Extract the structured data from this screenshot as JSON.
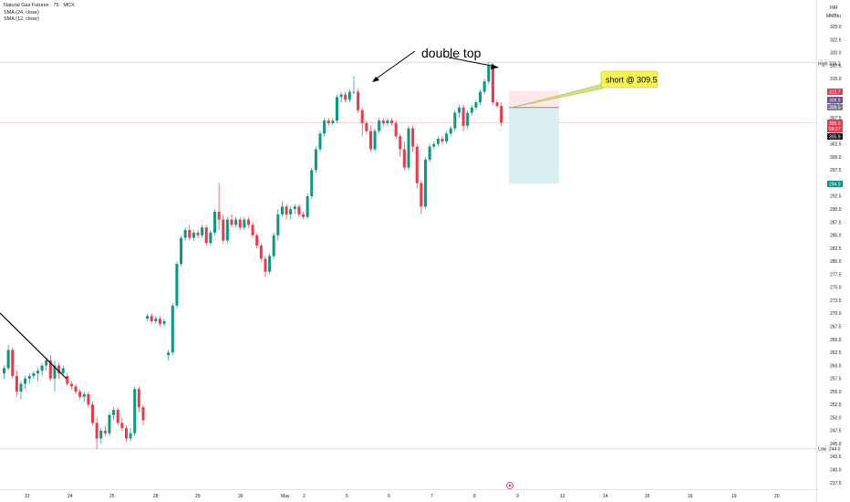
{
  "header": {
    "symbol_line": "Natural Gas Futures · 75 · MCX",
    "indicator_1": "SMA (24, close)",
    "indicator_2": "SMA (12, close)"
  },
  "currency": {
    "code": "INR",
    "unit": "MMBtu"
  },
  "annotations": {
    "double_top": "double top",
    "short_callout": "short @ 309.5"
  },
  "price_tags": {
    "high_label": "High",
    "high_value": "318.2",
    "low_label": "Low",
    "low_value": "244.0",
    "stop_value": "312.7",
    "tag_a": "309.9",
    "tag_b": "309.5",
    "current_price": "306.6",
    "countdown": "59:27",
    "tag_c": "305.9",
    "target_value": "294.9"
  },
  "colors": {
    "up": "#089981",
    "down": "#f23645",
    "high_low_line": "#b2b5be",
    "stop_zone": "#fce8ea",
    "target_zone": "#daf0f0",
    "entry_line": "#787b86",
    "callout_bg": "#f5f552",
    "target_tag": "#089981",
    "stop_tag": "#f23645",
    "dark_tag": "#131722",
    "purple_tag": "#6a4c93",
    "gray_tag": "#787b86"
  },
  "chart_data": {
    "type": "candlestick",
    "y_ticks": [
      "325.0",
      "322.5",
      "320.0",
      "317.5",
      "315.0",
      "312.5",
      "310.0",
      "307.5",
      "305.0",
      "302.5",
      "300.0",
      "297.5",
      "295.0",
      "292.5",
      "290.0",
      "287.5",
      "285.0",
      "282.5",
      "280.0",
      "277.5",
      "275.0",
      "272.5",
      "270.0",
      "267.5",
      "265.0",
      "262.5",
      "260.0",
      "257.5",
      "255.0",
      "252.5",
      "250.0",
      "247.5",
      "245.0",
      "242.5",
      "240.0",
      "237.5"
    ],
    "x_ticks": [
      "23",
      "24",
      "25",
      "28",
      "29",
      "30",
      "May",
      "2",
      "5",
      "6",
      "7",
      "8",
      "9",
      "12",
      "14",
      "15",
      "16",
      "19",
      "20"
    ],
    "ylim": [
      236.5,
      328.0
    ],
    "high": 318.2,
    "low": 244.0,
    "trade": {
      "entry": 309.5,
      "stop": 312.7,
      "target": 294.9
    },
    "candles": [
      [
        258.5,
        260.0,
        257.5,
        259.5
      ],
      [
        259.5,
        264.0,
        259.0,
        263.0
      ],
      [
        263.0,
        263.5,
        257.5,
        258.0
      ],
      [
        258.0,
        259.0,
        254.0,
        255.0
      ],
      [
        255.0,
        257.0,
        253.5,
        256.5
      ],
      [
        256.5,
        258.0,
        255.5,
        257.5
      ],
      [
        257.5,
        258.5,
        256.5,
        258.0
      ],
      [
        258.0,
        259.0,
        257.5,
        258.5
      ],
      [
        258.5,
        259.5,
        257.0,
        259.0
      ],
      [
        259.0,
        260.5,
        258.0,
        260.0
      ],
      [
        260.0,
        261.5,
        259.0,
        261.0
      ],
      [
        261.0,
        262.0,
        257.0,
        257.5
      ],
      [
        257.5,
        261.0,
        255.0,
        260.0
      ],
      [
        260.0,
        260.5,
        257.5,
        258.5
      ],
      [
        258.5,
        260.0,
        258.0,
        259.5
      ],
      [
        258.0,
        258.5,
        256.0,
        256.5
      ],
      [
        256.5,
        257.0,
        255.5,
        256.0
      ],
      [
        256.0,
        256.5,
        254.5,
        255.0
      ],
      [
        255.0,
        255.5,
        253.5,
        254.0
      ],
      [
        254.0,
        255.0,
        253.0,
        254.5
      ],
      [
        254.5,
        255.0,
        252.0,
        252.5
      ],
      [
        252.5,
        253.0,
        248.5,
        249.0
      ],
      [
        249.0,
        250.0,
        244.0,
        246.0
      ],
      [
        246.0,
        248.0,
        245.0,
        247.5
      ],
      [
        247.5,
        248.5,
        246.5,
        247.0
      ],
      [
        247.0,
        251.0,
        246.5,
        250.5
      ],
      [
        250.5,
        252.0,
        249.5,
        251.5
      ],
      [
        251.5,
        252.0,
        248.5,
        249.0
      ],
      [
        249.0,
        250.0,
        247.5,
        248.0
      ],
      [
        248.0,
        248.5,
        245.5,
        246.0
      ],
      [
        246.0,
        248.0,
        245.5,
        247.0
      ],
      [
        247.0,
        256.0,
        246.5,
        255.5
      ],
      [
        255.5,
        256.0,
        251.0,
        252.0
      ],
      [
        252.0,
        252.5,
        248.5,
        249.5
      ],
      [
        269.0,
        270.0,
        268.5,
        269.5
      ],
      [
        269.5,
        270.0,
        268.0,
        268.5
      ],
      [
        268.5,
        269.5,
        268.0,
        269.0
      ],
      [
        269.0,
        269.5,
        267.5,
        268.0
      ],
      [
        268.0,
        269.0,
        267.5,
        268.5
      ],
      [
        262.0,
        263.0,
        261.0,
        262.5
      ],
      [
        262.5,
        272.0,
        262.0,
        271.5
      ],
      [
        271.5,
        280.0,
        271.0,
        279.5
      ],
      [
        279.5,
        285.0,
        279.0,
        284.5
      ],
      [
        284.5,
        286.5,
        284.0,
        286.0
      ],
      [
        286.0,
        287.0,
        284.0,
        284.5
      ],
      [
        284.5,
        286.0,
        284.0,
        285.5
      ],
      [
        285.5,
        286.0,
        284.5,
        285.0
      ],
      [
        285.0,
        287.0,
        284.5,
        286.5
      ],
      [
        286.5,
        287.0,
        283.0,
        283.5
      ],
      [
        283.5,
        286.0,
        283.0,
        285.5
      ],
      [
        285.5,
        290.0,
        285.0,
        289.5
      ],
      [
        289.5,
        295.0,
        286.0,
        288.0
      ],
      [
        288.0,
        289.0,
        283.5,
        284.0
      ],
      [
        284.0,
        288.5,
        283.5,
        288.0
      ],
      [
        288.0,
        289.0,
        286.5,
        287.0
      ],
      [
        287.0,
        288.5,
        286.5,
        288.0
      ],
      [
        288.0,
        288.5,
        286.0,
        286.5
      ],
      [
        286.5,
        288.5,
        286.0,
        288.0
      ],
      [
        288.0,
        288.5,
        286.5,
        287.0
      ],
      [
        287.0,
        287.5,
        284.5,
        285.0
      ],
      [
        285.0,
        285.5,
        282.5,
        283.0
      ],
      [
        283.0,
        283.5,
        280.0,
        280.5
      ],
      [
        280.5,
        281.0,
        277.0,
        278.0
      ],
      [
        278.0,
        281.5,
        277.5,
        281.0
      ],
      [
        281.0,
        285.5,
        280.5,
        285.0
      ],
      [
        285.0,
        290.0,
        284.0,
        289.0
      ],
      [
        289.0,
        291.5,
        288.5,
        290.5
      ],
      [
        290.5,
        291.0,
        288.0,
        289.0
      ],
      [
        289.0,
        290.5,
        288.0,
        290.0
      ],
      [
        290.0,
        291.0,
        289.0,
        290.5
      ],
      [
        290.5,
        291.0,
        288.5,
        289.0
      ],
      [
        289.0,
        289.5,
        288.0,
        288.5
      ],
      [
        288.5,
        293.0,
        288.0,
        292.5
      ],
      [
        292.5,
        298.0,
        292.0,
        297.5
      ],
      [
        297.5,
        302.0,
        297.0,
        301.5
      ],
      [
        301.5,
        305.0,
        301.0,
        304.5
      ],
      [
        304.5,
        307.5,
        304.0,
        307.0
      ],
      [
        307.0,
        307.5,
        306.0,
        306.5
      ],
      [
        306.5,
        307.5,
        306.0,
        307.0
      ],
      [
        307.0,
        312.0,
        306.5,
        311.5
      ],
      [
        311.5,
        312.5,
        310.5,
        312.0
      ],
      [
        312.0,
        312.5,
        310.5,
        311.0
      ],
      [
        311.0,
        313.0,
        310.5,
        312.5
      ],
      [
        312.5,
        315.5,
        312.0,
        312.5
      ],
      [
        312.5,
        313.0,
        308.5,
        309.0
      ],
      [
        309.0,
        309.5,
        304.0,
        306.5
      ],
      [
        306.5,
        307.0,
        304.5,
        305.0
      ],
      [
        305.0,
        306.0,
        301.0,
        301.5
      ],
      [
        301.5,
        305.5,
        301.0,
        305.0
      ],
      [
        305.0,
        307.5,
        304.5,
        307.0
      ],
      [
        307.0,
        307.5,
        306.0,
        306.5
      ],
      [
        306.5,
        307.5,
        306.0,
        307.0
      ],
      [
        307.0,
        307.5,
        306.0,
        306.5
      ],
      [
        306.5,
        307.0,
        303.5,
        304.0
      ],
      [
        304.0,
        304.5,
        300.0,
        301.5
      ],
      [
        301.5,
        303.0,
        297.5,
        298.0
      ],
      [
        298.0,
        306.0,
        297.5,
        305.5
      ],
      [
        305.5,
        306.0,
        301.0,
        302.0
      ],
      [
        302.0,
        302.5,
        294.0,
        295.0
      ],
      [
        295.0,
        295.5,
        289.0,
        290.5
      ],
      [
        290.5,
        300.0,
        290.0,
        299.5
      ],
      [
        299.5,
        302.5,
        299.0,
        302.0
      ],
      [
        302.0,
        303.0,
        301.5,
        302.5
      ],
      [
        302.5,
        304.0,
        302.0,
        303.5
      ],
      [
        303.5,
        304.0,
        302.5,
        303.0
      ],
      [
        303.0,
        305.0,
        302.5,
        304.5
      ],
      [
        304.5,
        306.0,
        304.0,
        305.5
      ],
      [
        305.5,
        309.0,
        305.0,
        308.5
      ],
      [
        308.5,
        310.0,
        307.5,
        309.5
      ],
      [
        309.5,
        310.0,
        305.0,
        306.0
      ],
      [
        306.0,
        309.0,
        305.5,
        308.5
      ],
      [
        308.5,
        310.0,
        308.0,
        309.5
      ],
      [
        309.5,
        311.0,
        309.0,
        310.5
      ],
      [
        310.5,
        313.0,
        310.0,
        312.5
      ],
      [
        312.5,
        315.0,
        312.0,
        314.5
      ],
      [
        314.5,
        318.2,
        314.0,
        317.5
      ],
      [
        317.5,
        318.0,
        310.0,
        310.5
      ],
      [
        310.5,
        311.0,
        309.5,
        309.8
      ],
      [
        309.8,
        310.5,
        306.0,
        306.6
      ]
    ]
  }
}
